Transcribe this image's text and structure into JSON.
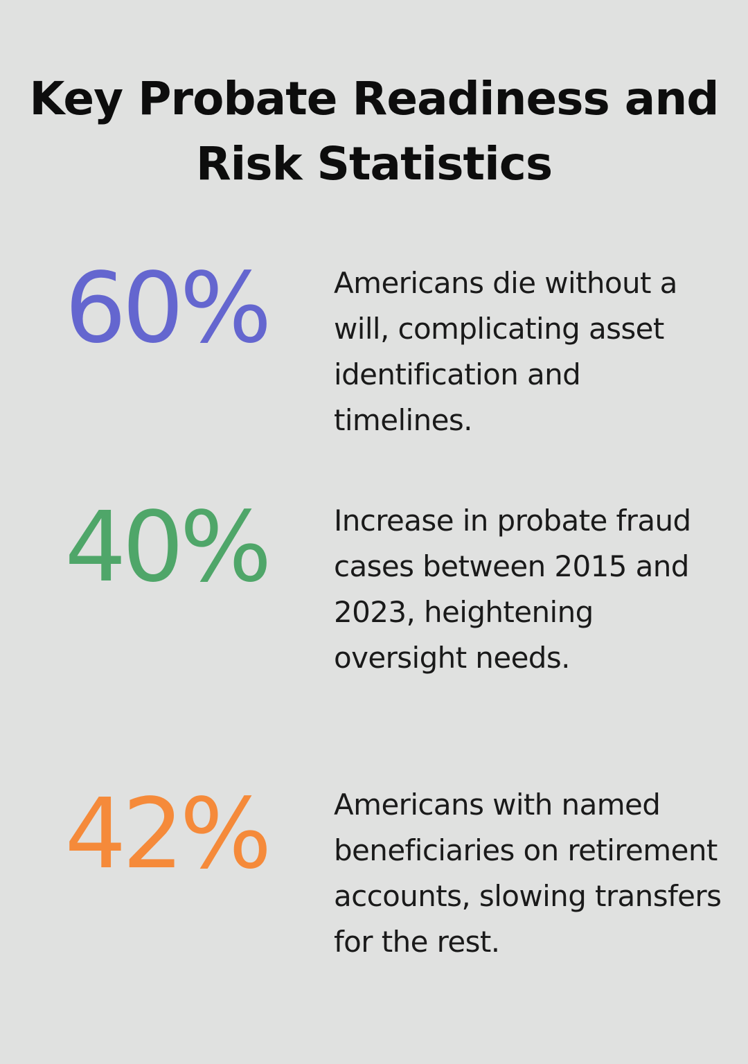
{
  "title": "Key Probate Readiness and Risk Statistics",
  "colors": {
    "background": "#e0e1e0",
    "stat_1": "#6466cf",
    "stat_2": "#4fa669",
    "stat_3": "#f58a3a"
  },
  "stats": [
    {
      "value": "60%",
      "description": "Americans die without a will, complicating asset identification and timelines."
    },
    {
      "value": "40%",
      "description": "Increase in probate fraud cases between 2015 and 2023, heightening oversight needs."
    },
    {
      "value": "42%",
      "description": "Americans with named beneficiaries on retirement accounts, slowing transfers for the rest."
    }
  ]
}
